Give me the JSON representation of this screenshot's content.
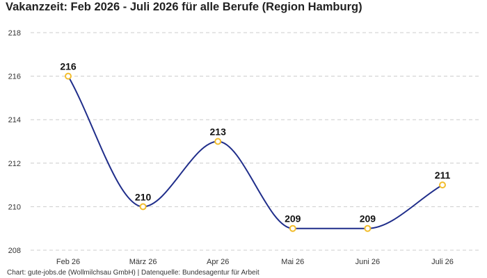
{
  "chart_data": {
    "type": "line",
    "title": "Vakanzzeit: Feb 2026 - Juli 2026 für alle Berufe (Region Hamburg)",
    "categories": [
      "Feb 26",
      "März 26",
      "Apr 26",
      "Mai 26",
      "Juni 26",
      "Juli 26"
    ],
    "series": [
      {
        "values": [
          216,
          210,
          213,
          209,
          209,
          211
        ]
      }
    ],
    "data_labels": [
      "216",
      "210",
      "213",
      "209",
      "209",
      "211"
    ],
    "y_ticks": [
      "208",
      "210",
      "212",
      "214",
      "216",
      "218"
    ],
    "ylim": [
      208,
      218
    ],
    "xlabel": "",
    "ylabel": "",
    "grid": "horizontal dashed",
    "legend": "none",
    "colors": {
      "line": "#1f2d8a",
      "marker_stroke": "#f2bd2c",
      "marker_fill": "#ffffff",
      "grid": "#cccccc"
    }
  },
  "source": "Chart: gute-jobs.de (Wollmilchsau GmbH) | Datenquelle: Bundesagentur für Arbeit"
}
